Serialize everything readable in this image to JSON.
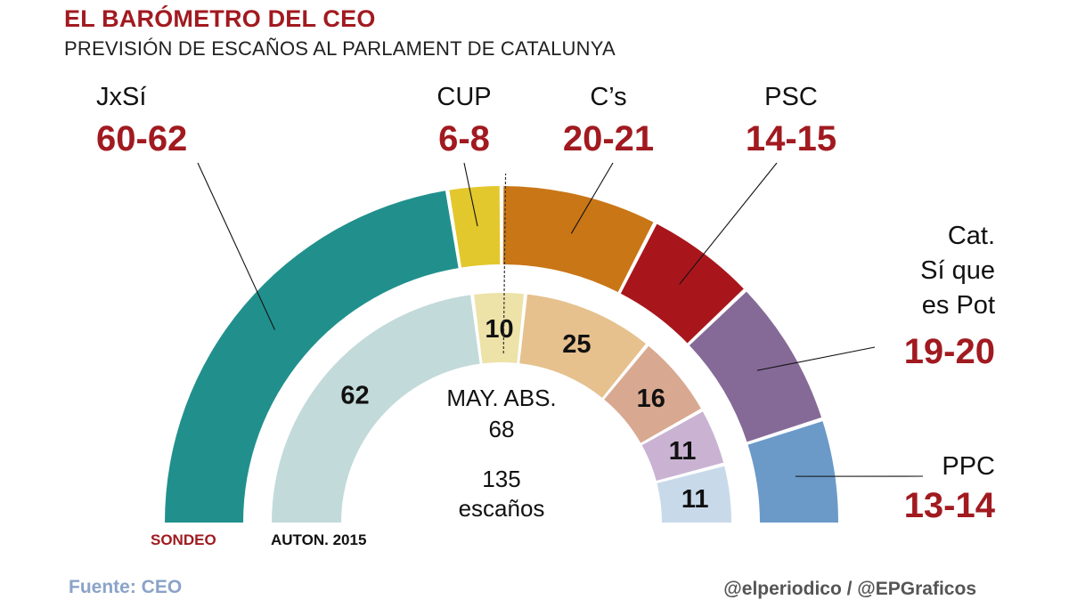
{
  "header": {
    "title": "EL BARÓMETRO DEL CEO",
    "subtitle": "PREVISIÓN DE ESCAÑOS AL PARLAMENT DE CATALUNYA"
  },
  "footer": {
    "source": "Fuente: CEO",
    "credit": "@elperiodico / @EPGraficos"
  },
  "chart_data": {
    "type": "semicircle-parliament",
    "total_seats": 135,
    "total_label": [
      "135",
      "escaños"
    ],
    "majority_label": [
      "MAY. ABS.",
      "68"
    ],
    "majority_seats": 68,
    "outer_ring_label": "SONDEO",
    "inner_ring_label": "AUTON. 2015",
    "parties": [
      {
        "name": "JxSí",
        "name_lines": [
          "JxSí"
        ],
        "forecast_label": "60-62",
        "forecast_range": [
          60,
          62
        ],
        "result_2015": 62,
        "color_forecast": "#21908d",
        "color_2015": "#c3dada"
      },
      {
        "name": "CUP",
        "name_lines": [
          "CUP"
        ],
        "forecast_label": "6-8",
        "forecast_range": [
          6,
          8
        ],
        "result_2015": 10,
        "color_forecast": "#e3c82d",
        "color_2015": "#ede2a8"
      },
      {
        "name": "C’s",
        "name_lines": [
          "C’s"
        ],
        "forecast_label": "20-21",
        "forecast_range": [
          20,
          21
        ],
        "result_2015": 25,
        "color_forecast": "#c97616",
        "color_2015": "#e6c18e"
      },
      {
        "name": "PSC",
        "name_lines": [
          "PSC"
        ],
        "forecast_label": "14-15",
        "forecast_range": [
          14,
          15
        ],
        "result_2015": 16,
        "color_forecast": "#a8161c",
        "color_2015": "#d8a990"
      },
      {
        "name": "Cat. Sí que es Pot",
        "name_lines": [
          "Cat.",
          "Sí que",
          "es Pot"
        ],
        "forecast_label": "19-20",
        "forecast_range": [
          19,
          20
        ],
        "result_2015": 11,
        "color_forecast": "#856a97",
        "color_2015": "#c9b2d2"
      },
      {
        "name": "PPC",
        "name_lines": [
          "PPC"
        ],
        "forecast_label": "13-14",
        "forecast_range": [
          13,
          14
        ],
        "result_2015": 11,
        "color_forecast": "#6b9ac8",
        "color_2015": "#c8d9ea"
      }
    ],
    "colors": {
      "label_value": "#a11a20",
      "label_name": "#111111",
      "ring_label_forecast": "#a11a20",
      "ring_label_2015": "#111111"
    }
  }
}
